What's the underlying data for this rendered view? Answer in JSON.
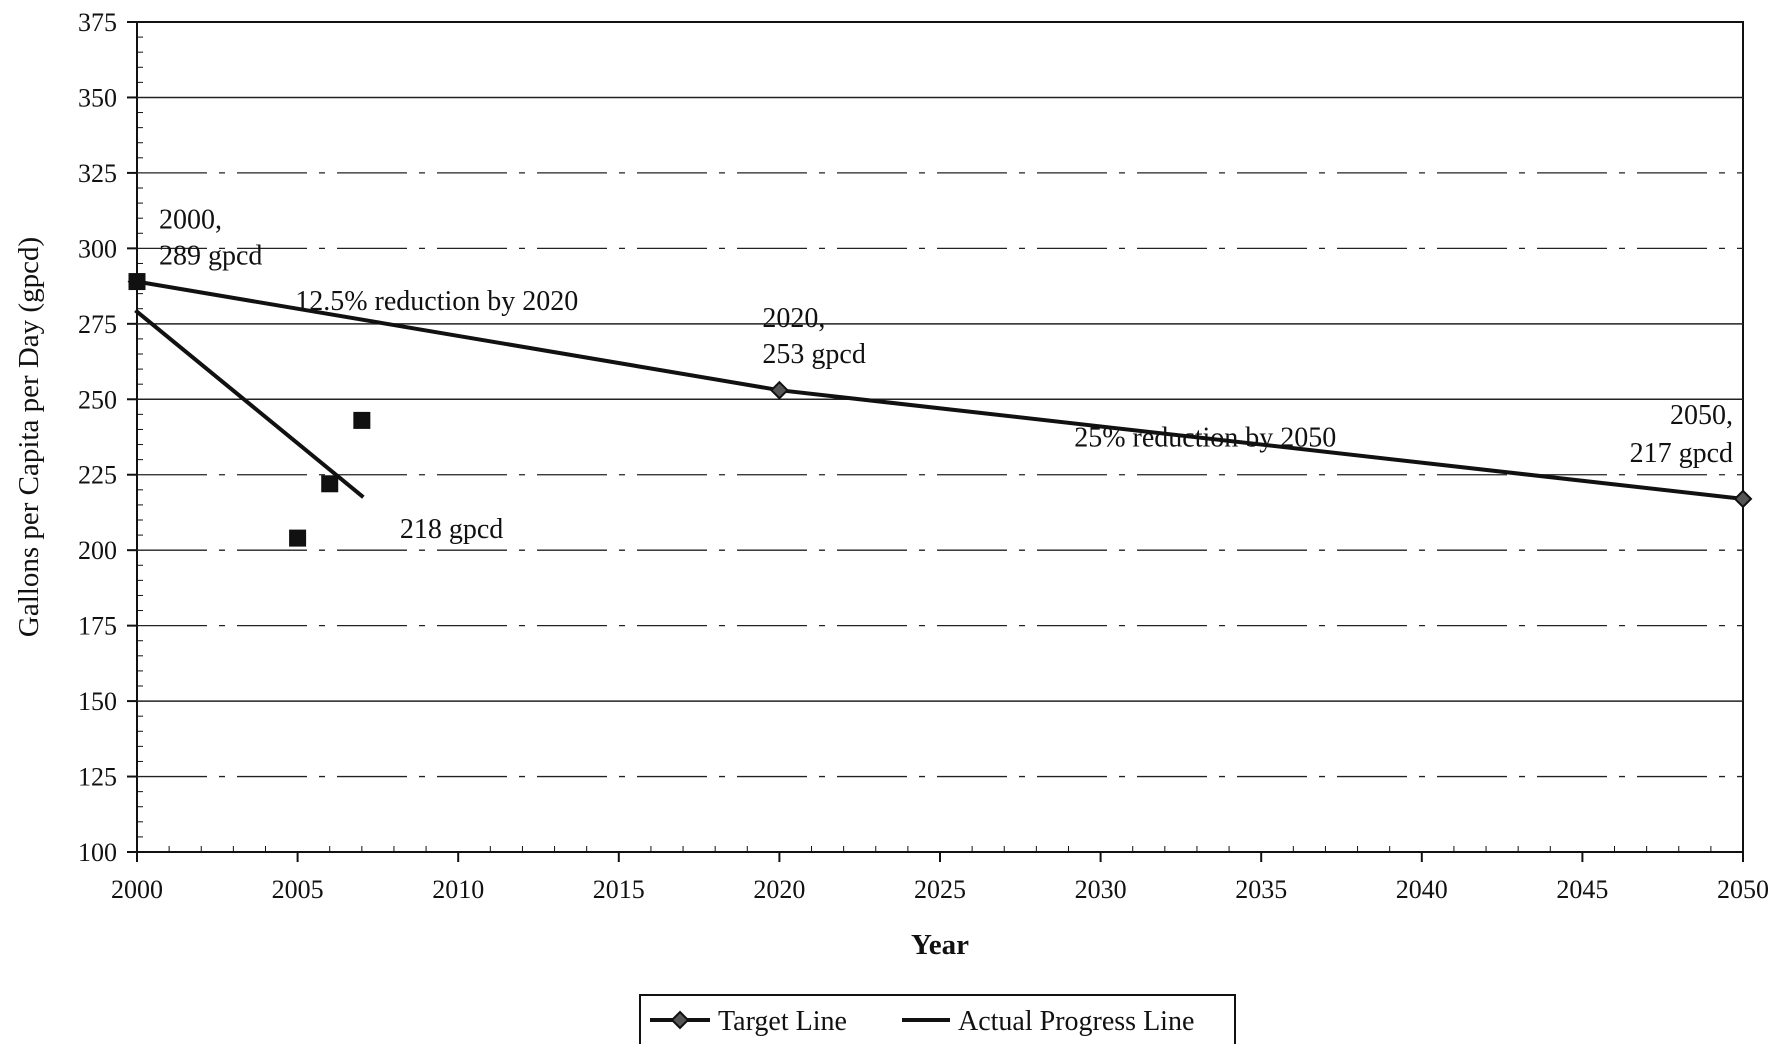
{
  "chart_data": {
    "type": "line",
    "title": "",
    "xlabel": "Year",
    "ylabel": "Gallons per Capita per Day (gpcd)",
    "xlim": [
      2000,
      2050
    ],
    "ylim": [
      100,
      375
    ],
    "x_ticks": [
      2000,
      2005,
      2010,
      2015,
      2020,
      2025,
      2030,
      2035,
      2040,
      2045,
      2050
    ],
    "y_ticks": [
      100,
      125,
      150,
      175,
      200,
      225,
      250,
      275,
      300,
      325,
      350,
      375
    ],
    "grid": "horizontal",
    "legend_position": "bottom",
    "series": [
      {
        "name": "Target Line",
        "marker": "diamond",
        "color": "#111111",
        "points": [
          [
            2000,
            289
          ],
          [
            2020,
            253
          ],
          [
            2050,
            217
          ]
        ]
      },
      {
        "name": "Actual Progress Line",
        "marker": "none",
        "color": "#111111",
        "points": [
          [
            2000,
            279
          ],
          [
            2007,
            218
          ]
        ]
      },
      {
        "name": "",
        "marker": "square",
        "color": "#111111",
        "points": [
          [
            2000,
            289
          ],
          [
            2005,
            204
          ],
          [
            2006,
            222
          ],
          [
            2007,
            243
          ]
        ]
      }
    ],
    "annotations": [
      {
        "lines": [
          "2000,",
          "289 gpcd"
        ],
        "x": 2000,
        "y": 289
      },
      {
        "lines": [
          "12.5% reduction by 2020"
        ],
        "x": 2010,
        "y": 276
      },
      {
        "lines": [
          "2020,",
          "253 gpcd"
        ],
        "x": 2020,
        "y": 253
      },
      {
        "lines": [
          "25% reduction by 2050"
        ],
        "x": 2035,
        "y": 240
      },
      {
        "lines": [
          "2050,",
          "217 gpcd"
        ],
        "x": 2050,
        "y": 217
      },
      {
        "lines": [
          "218 gpcd"
        ],
        "x": 2007,
        "y": 218
      }
    ],
    "legend": [
      "Target Line",
      "Actual Progress Line"
    ]
  }
}
